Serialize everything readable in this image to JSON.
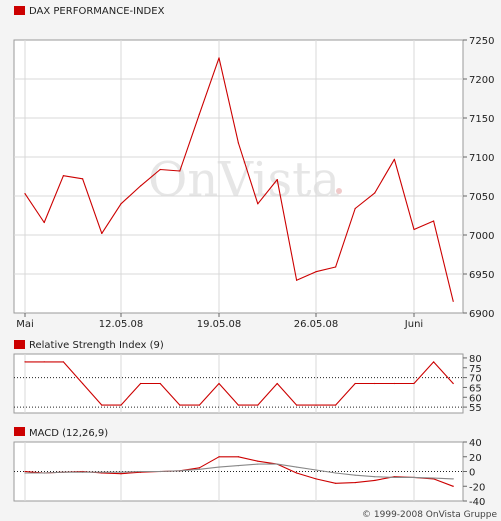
{
  "chart_data": [
    {
      "type": "line",
      "title": "DAX PERFORMANCE-INDEX",
      "watermark": "OnVista",
      "x_tick_labels": [
        "Mai",
        "12.05.08",
        "19.05.08",
        "26.05.08",
        "Juni"
      ],
      "ylim": [
        6900,
        7250
      ],
      "y_ticks": [
        6900,
        6950,
        7000,
        7050,
        7100,
        7150,
        7200,
        7250
      ],
      "grid": true,
      "line_color": "#cc0000",
      "series": [
        {
          "values": [
            7053,
            7016,
            7076,
            7072,
            7002,
            7040,
            7063,
            7084,
            7082,
            7155,
            7227,
            7118,
            7040,
            7071,
            6942,
            6953,
            6959,
            7034,
            7054,
            7097,
            7007,
            7018,
            6915
          ]
        }
      ]
    },
    {
      "type": "line",
      "title": "Relative Strength Index (9)",
      "ylim": [
        52,
        82
      ],
      "y_ticks": [
        55,
        60,
        65,
        70,
        75,
        80
      ],
      "reference_lines": [
        55,
        70
      ],
      "line_color": "#cc0000",
      "series": [
        {
          "values": [
            78,
            78,
            78,
            67,
            56,
            56,
            67,
            67,
            56,
            56,
            67,
            56,
            56,
            67,
            56,
            56,
            56,
            67,
            67,
            67,
            67,
            78,
            67
          ]
        }
      ]
    },
    {
      "type": "line",
      "title": "MACD (12,26,9)",
      "ylim": [
        -40,
        40
      ],
      "y_ticks": [
        -40,
        -20,
        0,
        20,
        40
      ],
      "reference_lines": [
        0
      ],
      "series": [
        {
          "color": "#cc0000",
          "values": [
            0,
            -2,
            -1,
            0,
            -2,
            -3,
            -1,
            0,
            1,
            5,
            20,
            20,
            14,
            10,
            -2,
            -10,
            -16,
            -15,
            -12,
            -7,
            -8,
            -10,
            -20
          ]
        },
        {
          "color": "#888888",
          "values": [
            -2,
            -2,
            -1,
            -1,
            -1,
            -1,
            0,
            0,
            1,
            3,
            6,
            8,
            10,
            10,
            6,
            2,
            -2,
            -5,
            -7,
            -8,
            -8,
            -9,
            -10
          ]
        }
      ]
    }
  ],
  "footer": "© 1999-2008 OnVista Gruppe"
}
